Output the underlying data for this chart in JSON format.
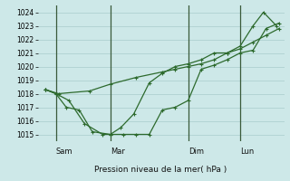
{
  "xlabel": "Pression niveau de la mer( hPa )",
  "background_color": "#cde8e8",
  "grid_color": "#a8cccc",
  "line_color": "#2d6a2d",
  "vline_color": "#3a5a3a",
  "ylim": [
    1014.5,
    1024.5
  ],
  "yticks": [
    1015,
    1016,
    1017,
    1018,
    1019,
    1020,
    1021,
    1022,
    1023,
    1024
  ],
  "xlim": [
    0,
    9.5
  ],
  "day_labels": [
    "Sam",
    "Mar",
    "Dim",
    "Lun"
  ],
  "day_vlines": [
    0.7,
    2.8,
    5.8,
    7.8
  ],
  "series1_x": [
    0.3,
    0.7,
    1.1,
    1.6,
    2.1,
    2.8,
    3.3,
    3.8,
    4.3,
    4.8,
    5.3,
    5.8,
    6.3,
    6.8,
    7.3,
    7.8,
    8.3,
    8.8,
    9.3
  ],
  "series1_y": [
    1018.3,
    1018.0,
    1017.0,
    1016.8,
    1015.2,
    1015.0,
    1015.0,
    1015.0,
    1015.0,
    1016.8,
    1017.0,
    1017.5,
    1019.8,
    1020.1,
    1020.5,
    1021.0,
    1021.2,
    1022.8,
    1023.2
  ],
  "series2_x": [
    0.3,
    0.7,
    1.2,
    1.8,
    2.5,
    2.8,
    3.2,
    3.7,
    4.3,
    4.8,
    5.3,
    5.8,
    6.3,
    6.8,
    7.3,
    7.8,
    8.3,
    8.7,
    9.2
  ],
  "series2_y": [
    1018.3,
    1018.0,
    1017.5,
    1015.8,
    1015.0,
    1015.0,
    1015.5,
    1016.5,
    1018.8,
    1019.5,
    1020.0,
    1020.2,
    1020.5,
    1021.0,
    1021.0,
    1021.5,
    1023.0,
    1024.0,
    1023.0
  ],
  "series3_x": [
    0.3,
    0.8,
    2.0,
    2.8,
    3.8,
    4.8,
    5.3,
    5.8,
    6.3,
    6.8,
    7.3,
    7.8,
    8.3,
    8.8,
    9.3
  ],
  "series3_y": [
    1018.3,
    1018.0,
    1018.2,
    1018.7,
    1019.2,
    1019.6,
    1019.8,
    1020.0,
    1020.2,
    1020.5,
    1021.0,
    1021.3,
    1021.8,
    1022.3,
    1022.8
  ],
  "figsize": [
    3.2,
    2.0
  ],
  "dpi": 100
}
